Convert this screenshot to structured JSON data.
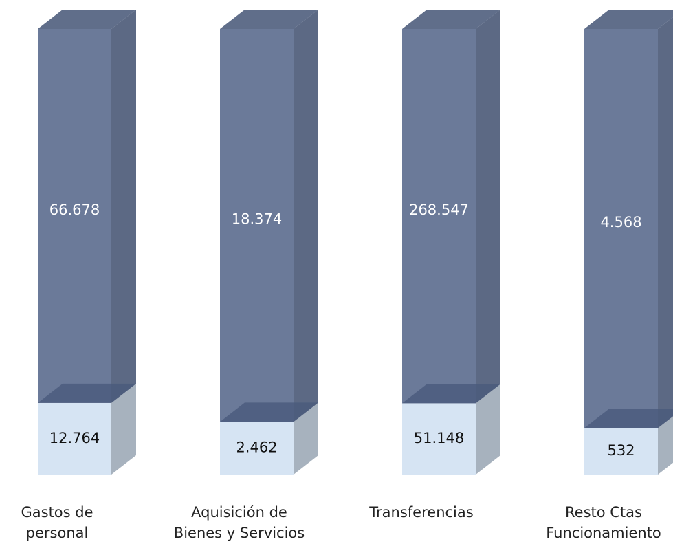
{
  "chart_data": {
    "type": "bar",
    "stacked": "percent",
    "categories": [
      [
        "Gastos de",
        "personal"
      ],
      [
        "Aquisición de",
        "Bienes y Servicios"
      ],
      [
        "Transferencias"
      ],
      [
        "Resto Ctas",
        "Funcionamiento"
      ]
    ],
    "series": [
      {
        "color": "#d6e4f3",
        "values": [
          12764,
          2462,
          51148,
          532
        ],
        "value_labels": [
          "12.764",
          "2.462",
          "51.148",
          "532"
        ]
      },
      {
        "color": "#6b7a99",
        "values": [
          66678,
          18374,
          268547,
          4568
        ],
        "value_labels": [
          "66.678",
          "18.374",
          "268.547",
          "4.568"
        ]
      }
    ]
  }
}
